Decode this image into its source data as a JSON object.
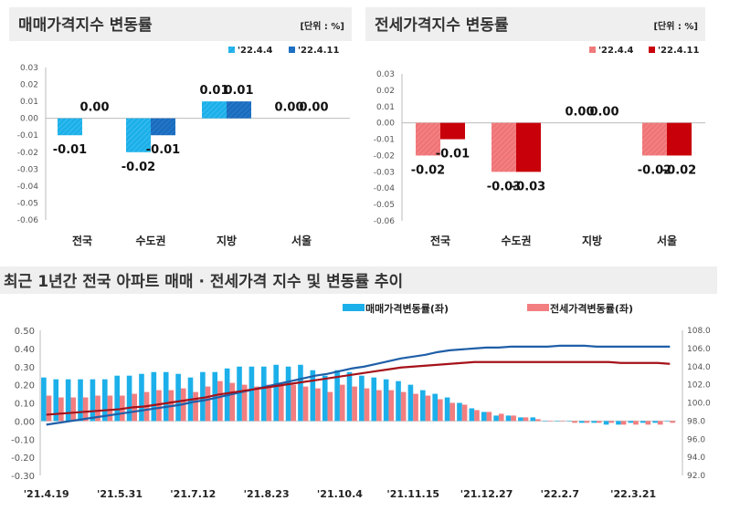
{
  "colors": {
    "sale_light": "#1cb0ea",
    "sale_dark": "#1a6cbf",
    "jeonse_light": "#f27e80",
    "jeonse_dark": "#c8000a",
    "sale_index_line": "#1f5fa8",
    "jeonse_index_line": "#a5121a",
    "header_bg": "#efefef"
  },
  "chart_data": [
    {
      "type": "bar",
      "title": "매매가격지수 변동률",
      "unit": "[단위 : %]",
      "categories": [
        "전국",
        "수도권",
        "지방",
        "서울"
      ],
      "ylim": [
        -0.06,
        0.03
      ],
      "yticks": [
        "0.03",
        "0.02",
        "0.01",
        "0.00",
        "-0.01",
        "-0.02",
        "-0.03",
        "-0.04",
        "-0.05",
        "-0.06"
      ],
      "legend": "top-right",
      "series": [
        {
          "name": "'22.4.4",
          "values": [
            -0.01,
            -0.02,
            0.01,
            0.0
          ],
          "labels": [
            "-0.01",
            "-0.02",
            "0.01",
            "0.00"
          ]
        },
        {
          "name": "'22.4.11",
          "values": [
            0.0,
            -0.01,
            0.01,
            0.0
          ],
          "labels": [
            "0.00",
            "-0.01",
            "0.01",
            "0.00"
          ]
        }
      ]
    },
    {
      "type": "bar",
      "title": "전세가격지수 변동률",
      "unit": "[단위 : %]",
      "categories": [
        "전국",
        "수도권",
        "지방",
        "서울"
      ],
      "ylim": [
        -0.06,
        0.03
      ],
      "yticks": [
        "0.03",
        "0.02",
        "0.01",
        "0.00",
        "-0.01",
        "-0.02",
        "-0.03",
        "-0.04",
        "-0.05",
        "-0.06"
      ],
      "legend": "top-right",
      "series": [
        {
          "name": "'22.4.4",
          "values": [
            -0.02,
            -0.03,
            0.0,
            -0.02
          ],
          "labels": [
            "-0.02",
            "-0.03",
            "0.00",
            "-0.02"
          ]
        },
        {
          "name": "'22.4.11",
          "values": [
            -0.01,
            -0.03,
            0.0,
            -0.02
          ],
          "labels": [
            "-0.01",
            "-0.03",
            "0.00",
            "-0.02"
          ]
        }
      ]
    },
    {
      "type": "bar+line",
      "title": "최근 1년간 전국 아파트 매매 · 전세가격 지수 및 변동률 추이",
      "ylim": [
        -0.3,
        0.5
      ],
      "y2lim": [
        92.0,
        108.0
      ],
      "yticks": [
        "0.50",
        "0.40",
        "0.30",
        "0.20",
        "0.10",
        "0.00",
        "-0.10",
        "-0.20",
        "-0.30"
      ],
      "y2ticks": [
        "108.0",
        "106.0",
        "104.0",
        "102.0",
        "100.0",
        "98.0",
        "96.0",
        "94.0",
        "92.0"
      ],
      "xticks": [
        "'21.4.19",
        "'21.5.31",
        "'21.7.12",
        "'21.8.23",
        "'21.10.4",
        "'21.11.15",
        "'21.12.27",
        "'22.2.7",
        "'22.3.21"
      ],
      "legend": [
        "매매가격변동률(좌)",
        "전세가격변동률(좌)"
      ],
      "sale_rate": [
        0.24,
        0.23,
        0.23,
        0.23,
        0.23,
        0.23,
        0.25,
        0.25,
        0.26,
        0.27,
        0.27,
        0.26,
        0.24,
        0.27,
        0.27,
        0.29,
        0.3,
        0.3,
        0.3,
        0.31,
        0.3,
        0.31,
        0.28,
        0.25,
        0.28,
        0.27,
        0.25,
        0.24,
        0.23,
        0.22,
        0.2,
        0.17,
        0.15,
        0.13,
        0.1,
        0.07,
        0.05,
        0.03,
        0.03,
        0.02,
        0.02,
        0.0,
        0.0,
        0.0,
        -0.01,
        -0.01,
        -0.02,
        -0.02,
        -0.01,
        -0.01,
        -0.01,
        0.0
      ],
      "jeonse_rate": [
        0.14,
        0.13,
        0.13,
        0.13,
        0.14,
        0.14,
        0.14,
        0.15,
        0.16,
        0.17,
        0.17,
        0.18,
        0.16,
        0.19,
        0.22,
        0.21,
        0.2,
        0.19,
        0.2,
        0.2,
        0.2,
        0.19,
        0.18,
        0.16,
        0.2,
        0.19,
        0.18,
        0.17,
        0.17,
        0.16,
        0.15,
        0.14,
        0.12,
        0.1,
        0.09,
        0.06,
        0.05,
        0.04,
        0.03,
        0.02,
        0.01,
        0.0,
        0.0,
        -0.01,
        -0.01,
        -0.01,
        -0.01,
        -0.02,
        -0.02,
        -0.02,
        -0.02,
        -0.01
      ],
      "sale_index": [
        97.6,
        97.8,
        98.0,
        98.2,
        98.4,
        98.6,
        98.8,
        99.0,
        99.2,
        99.4,
        99.6,
        99.8,
        100.1,
        100.3,
        100.6,
        100.9,
        101.2,
        101.5,
        101.8,
        102.1,
        102.4,
        102.7,
        103.0,
        103.2,
        103.5,
        103.8,
        104.0,
        104.3,
        104.6,
        104.9,
        105.1,
        105.3,
        105.6,
        105.8,
        105.9,
        106.0,
        106.1,
        106.1,
        106.2,
        106.2,
        106.2,
        106.2,
        106.3,
        106.3,
        106.3,
        106.2,
        106.2,
        106.2,
        106.2,
        106.2,
        106.2,
        106.2
      ],
      "jeonse_index": [
        98.7,
        98.8,
        98.9,
        99.0,
        99.1,
        99.2,
        99.3,
        99.5,
        99.6,
        99.8,
        100.0,
        100.2,
        100.4,
        100.6,
        100.9,
        101.1,
        101.3,
        101.5,
        101.7,
        101.9,
        102.1,
        102.3,
        102.5,
        102.7,
        102.9,
        103.1,
        103.3,
        103.5,
        103.7,
        103.9,
        104.0,
        104.1,
        104.2,
        104.3,
        104.4,
        104.5,
        104.5,
        104.5,
        104.5,
        104.5,
        104.5,
        104.5,
        104.5,
        104.5,
        104.5,
        104.5,
        104.5,
        104.4,
        104.4,
        104.4,
        104.4,
        104.3
      ]
    }
  ]
}
